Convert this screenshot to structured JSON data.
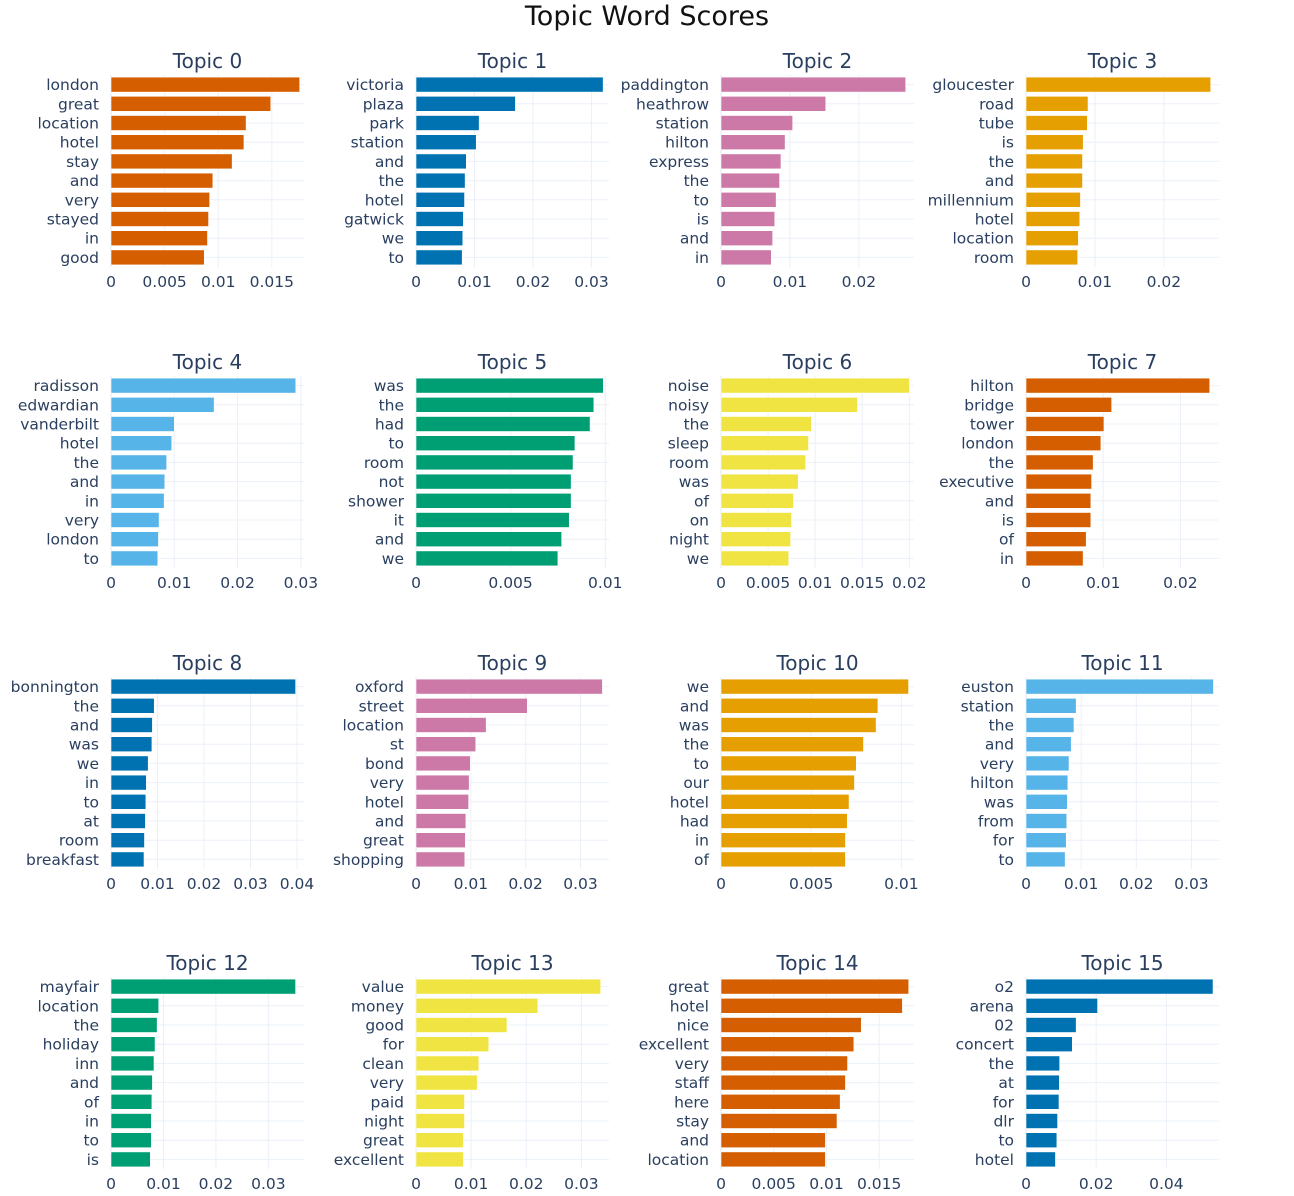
{
  "title": "Topic Word Scores",
  "chart_data": [
    {
      "type": "bar",
      "orientation": "horizontal",
      "title": "Topic 0",
      "color": "#D55E00",
      "categories": [
        "london",
        "great",
        "location",
        "hotel",
        "stay",
        "and",
        "very",
        "stayed",
        "in",
        "good"
      ],
      "values": [
        0.0176,
        0.0149,
        0.0126,
        0.0124,
        0.0113,
        0.0095,
        0.0092,
        0.0091,
        0.009,
        0.0087
      ],
      "xlim": [
        0,
        0.018
      ],
      "ticks": [
        0,
        0.005,
        0.01,
        0.015
      ],
      "tick_labels": [
        "0",
        "0.005",
        "0.01",
        "0.015"
      ]
    },
    {
      "type": "bar",
      "orientation": "horizontal",
      "title": "Topic 1",
      "color": "#0072B2",
      "categories": [
        "victoria",
        "plaza",
        "park",
        "station",
        "and",
        "the",
        "hotel",
        "gatwick",
        "we",
        "to"
      ],
      "values": [
        0.032,
        0.017,
        0.0108,
        0.0103,
        0.0086,
        0.0084,
        0.0083,
        0.0081,
        0.008,
        0.0079
      ],
      "xlim": [
        0,
        0.033
      ],
      "ticks": [
        0,
        0.01,
        0.02,
        0.03
      ],
      "tick_labels": [
        "0",
        "0.01",
        "0.02",
        "0.03"
      ]
    },
    {
      "type": "bar",
      "orientation": "horizontal",
      "title": "Topic 2",
      "color": "#CC79A7",
      "categories": [
        "paddington",
        "heathrow",
        "station",
        "hilton",
        "express",
        "the",
        "to",
        "is",
        "and",
        "in"
      ],
      "values": [
        0.0268,
        0.0152,
        0.0104,
        0.0093,
        0.0087,
        0.0085,
        0.008,
        0.0078,
        0.0075,
        0.0073
      ],
      "xlim": [
        0,
        0.028
      ],
      "ticks": [
        0,
        0.01,
        0.02
      ],
      "tick_labels": [
        "0",
        "0.01",
        "0.02"
      ]
    },
    {
      "type": "bar",
      "orientation": "horizontal",
      "title": "Topic 3",
      "color": "#E69F00",
      "categories": [
        "gloucester",
        "road",
        "tube",
        "is",
        "the",
        "and",
        "millennium",
        "hotel",
        "location",
        "room"
      ],
      "values": [
        0.0268,
        0.009,
        0.0089,
        0.0083,
        0.0082,
        0.0082,
        0.0079,
        0.0078,
        0.0076,
        0.0075
      ],
      "xlim": [
        0,
        0.028
      ],
      "ticks": [
        0,
        0.01,
        0.02
      ],
      "tick_labels": [
        "0",
        "0.01",
        "0.02"
      ]
    },
    {
      "type": "bar",
      "orientation": "horizontal",
      "title": "Topic 4",
      "color": "#56B4E9",
      "categories": [
        "radisson",
        "edwardian",
        "vanderbilt",
        "hotel",
        "the",
        "and",
        "in",
        "very",
        "london",
        "to"
      ],
      "values": [
        0.0292,
        0.0163,
        0.01,
        0.0096,
        0.0088,
        0.0085,
        0.0084,
        0.0076,
        0.0075,
        0.0074
      ],
      "xlim": [
        0,
        0.0305
      ],
      "ticks": [
        0,
        0.01,
        0.02,
        0.03
      ],
      "tick_labels": [
        "0",
        "0.01",
        "0.02",
        "0.03"
      ]
    },
    {
      "type": "bar",
      "orientation": "horizontal",
      "title": "Topic 5",
      "color": "#009E73",
      "categories": [
        "was",
        "the",
        "had",
        "to",
        "room",
        "not",
        "shower",
        "it",
        "and",
        "we"
      ],
      "values": [
        0.0099,
        0.0094,
        0.0092,
        0.0084,
        0.0083,
        0.0082,
        0.0082,
        0.0081,
        0.0077,
        0.0075
      ],
      "xlim": [
        0,
        0.0102
      ],
      "ticks": [
        0,
        0.005,
        0.01
      ],
      "tick_labels": [
        "0",
        "0.005",
        "0.01"
      ]
    },
    {
      "type": "bar",
      "orientation": "horizontal",
      "title": "Topic 6",
      "color": "#F0E442",
      "categories": [
        "noise",
        "noisy",
        "the",
        "sleep",
        "room",
        "was",
        "of",
        "on",
        "night",
        "we"
      ],
      "values": [
        0.02,
        0.0145,
        0.0096,
        0.0093,
        0.009,
        0.0082,
        0.0077,
        0.0075,
        0.0074,
        0.0072
      ],
      "xlim": [
        0,
        0.0205
      ],
      "ticks": [
        0,
        0.005,
        0.01,
        0.015,
        0.02
      ],
      "tick_labels": [
        "0",
        "0.005",
        "0.01",
        "0.015",
        "0.02"
      ]
    },
    {
      "type": "bar",
      "orientation": "horizontal",
      "title": "Topic 7",
      "color": "#D55E00",
      "categories": [
        "hilton",
        "bridge",
        "tower",
        "london",
        "the",
        "executive",
        "and",
        "is",
        "of",
        "in"
      ],
      "values": [
        0.0238,
        0.0111,
        0.0101,
        0.0097,
        0.0087,
        0.0085,
        0.0084,
        0.0084,
        0.0078,
        0.0074
      ],
      "xlim": [
        0,
        0.025
      ],
      "ticks": [
        0,
        0.01,
        0.02
      ],
      "tick_labels": [
        "0",
        "0.01",
        "0.02"
      ]
    },
    {
      "type": "bar",
      "orientation": "horizontal",
      "title": "Topic 8",
      "color": "#0072B2",
      "categories": [
        "bonnington",
        "the",
        "and",
        "was",
        "we",
        "in",
        "to",
        "at",
        "room",
        "breakfast"
      ],
      "values": [
        0.0397,
        0.0093,
        0.0089,
        0.0088,
        0.008,
        0.0076,
        0.0075,
        0.0074,
        0.0072,
        0.0071
      ],
      "xlim": [
        0,
        0.0415
      ],
      "ticks": [
        0,
        0.01,
        0.02,
        0.03,
        0.04
      ],
      "tick_labels": [
        "0",
        "0.01",
        "0.02",
        "0.03",
        "0.04"
      ]
    },
    {
      "type": "bar",
      "orientation": "horizontal",
      "title": "Topic 9",
      "color": "#CC79A7",
      "categories": [
        "oxford",
        "street",
        "location",
        "st",
        "bond",
        "very",
        "hotel",
        "and",
        "great",
        "shopping"
      ],
      "values": [
        0.034,
        0.0203,
        0.0128,
        0.0109,
        0.0099,
        0.0097,
        0.0096,
        0.0091,
        0.009,
        0.0089
      ],
      "xlim": [
        0,
        0.0352
      ],
      "ticks": [
        0,
        0.01,
        0.02,
        0.03
      ],
      "tick_labels": [
        "0",
        "0.01",
        "0.02",
        "0.03"
      ]
    },
    {
      "type": "bar",
      "orientation": "horizontal",
      "title": "Topic 10",
      "color": "#E69F00",
      "categories": [
        "we",
        "and",
        "was",
        "the",
        "to",
        "our",
        "hotel",
        "had",
        "in",
        "of"
      ],
      "values": [
        0.0104,
        0.0087,
        0.0086,
        0.0079,
        0.0075,
        0.0074,
        0.0071,
        0.007,
        0.0069,
        0.0069
      ],
      "xlim": [
        0,
        0.0107
      ],
      "ticks": [
        0,
        0.005,
        0.01
      ],
      "tick_labels": [
        "0",
        "0.005",
        "0.01"
      ]
    },
    {
      "type": "bar",
      "orientation": "horizontal",
      "title": "Topic 11",
      "color": "#56B4E9",
      "categories": [
        "euston",
        "station",
        "the",
        "and",
        "very",
        "hilton",
        "was",
        "from",
        "for",
        "to"
      ],
      "values": [
        0.034,
        0.0091,
        0.0087,
        0.0082,
        0.0078,
        0.0076,
        0.0075,
        0.0074,
        0.0073,
        0.0071
      ],
      "xlim": [
        0,
        0.035
      ],
      "ticks": [
        0,
        0.01,
        0.02,
        0.03
      ],
      "tick_labels": [
        "0",
        "0.01",
        "0.02",
        "0.03"
      ]
    },
    {
      "type": "bar",
      "orientation": "horizontal",
      "title": "Topic 12",
      "color": "#009E73",
      "categories": [
        "mayfair",
        "location",
        "the",
        "holiday",
        "inn",
        "and",
        "of",
        "in",
        "to",
        "is"
      ],
      "values": [
        0.0352,
        0.0091,
        0.0088,
        0.0084,
        0.0082,
        0.0079,
        0.0078,
        0.0077,
        0.0077,
        0.0075
      ],
      "xlim": [
        0,
        0.0368
      ],
      "ticks": [
        0,
        0.01,
        0.02,
        0.03
      ],
      "tick_labels": [
        "0",
        "0.01",
        "0.02",
        "0.03"
      ]
    },
    {
      "type": "bar",
      "orientation": "horizontal",
      "title": "Topic 13",
      "color": "#F0E442",
      "categories": [
        "value",
        "money",
        "good",
        "for",
        "clean",
        "very",
        "paid",
        "night",
        "great",
        "excellent"
      ],
      "values": [
        0.0335,
        0.0221,
        0.0165,
        0.0132,
        0.0114,
        0.0111,
        0.0088,
        0.0088,
        0.0086,
        0.0086
      ],
      "xlim": [
        0,
        0.035
      ],
      "ticks": [
        0,
        0.01,
        0.02,
        0.03
      ],
      "tick_labels": [
        "0",
        "0.01",
        "0.02",
        "0.03"
      ]
    },
    {
      "type": "bar",
      "orientation": "horizontal",
      "title": "Topic 14",
      "color": "#D55E00",
      "categories": [
        "great",
        "hotel",
        "nice",
        "excellent",
        "very",
        "staff",
        "here",
        "stay",
        "and",
        "location"
      ],
      "values": [
        0.0178,
        0.0172,
        0.0133,
        0.0126,
        0.012,
        0.0118,
        0.0113,
        0.011,
        0.0099,
        0.0099
      ],
      "xlim": [
        0,
        0.0183
      ],
      "ticks": [
        0,
        0.005,
        0.01,
        0.015
      ],
      "tick_labels": [
        "0",
        "0.005",
        "0.01",
        "0.015"
      ]
    },
    {
      "type": "bar",
      "orientation": "horizontal",
      "title": "Topic 15",
      "color": "#0072B2",
      "categories": [
        "o2",
        "arena",
        "02",
        "concert",
        "the",
        "at",
        "for",
        "dlr",
        "to",
        "hotel"
      ],
      "values": [
        0.0533,
        0.0204,
        0.0143,
        0.0132,
        0.0096,
        0.0095,
        0.0094,
        0.009,
        0.0088,
        0.0084
      ],
      "xlim": [
        0,
        0.055
      ],
      "ticks": [
        0,
        0.02,
        0.04
      ],
      "tick_labels": [
        "0",
        "0.02",
        "0.04"
      ]
    }
  ]
}
